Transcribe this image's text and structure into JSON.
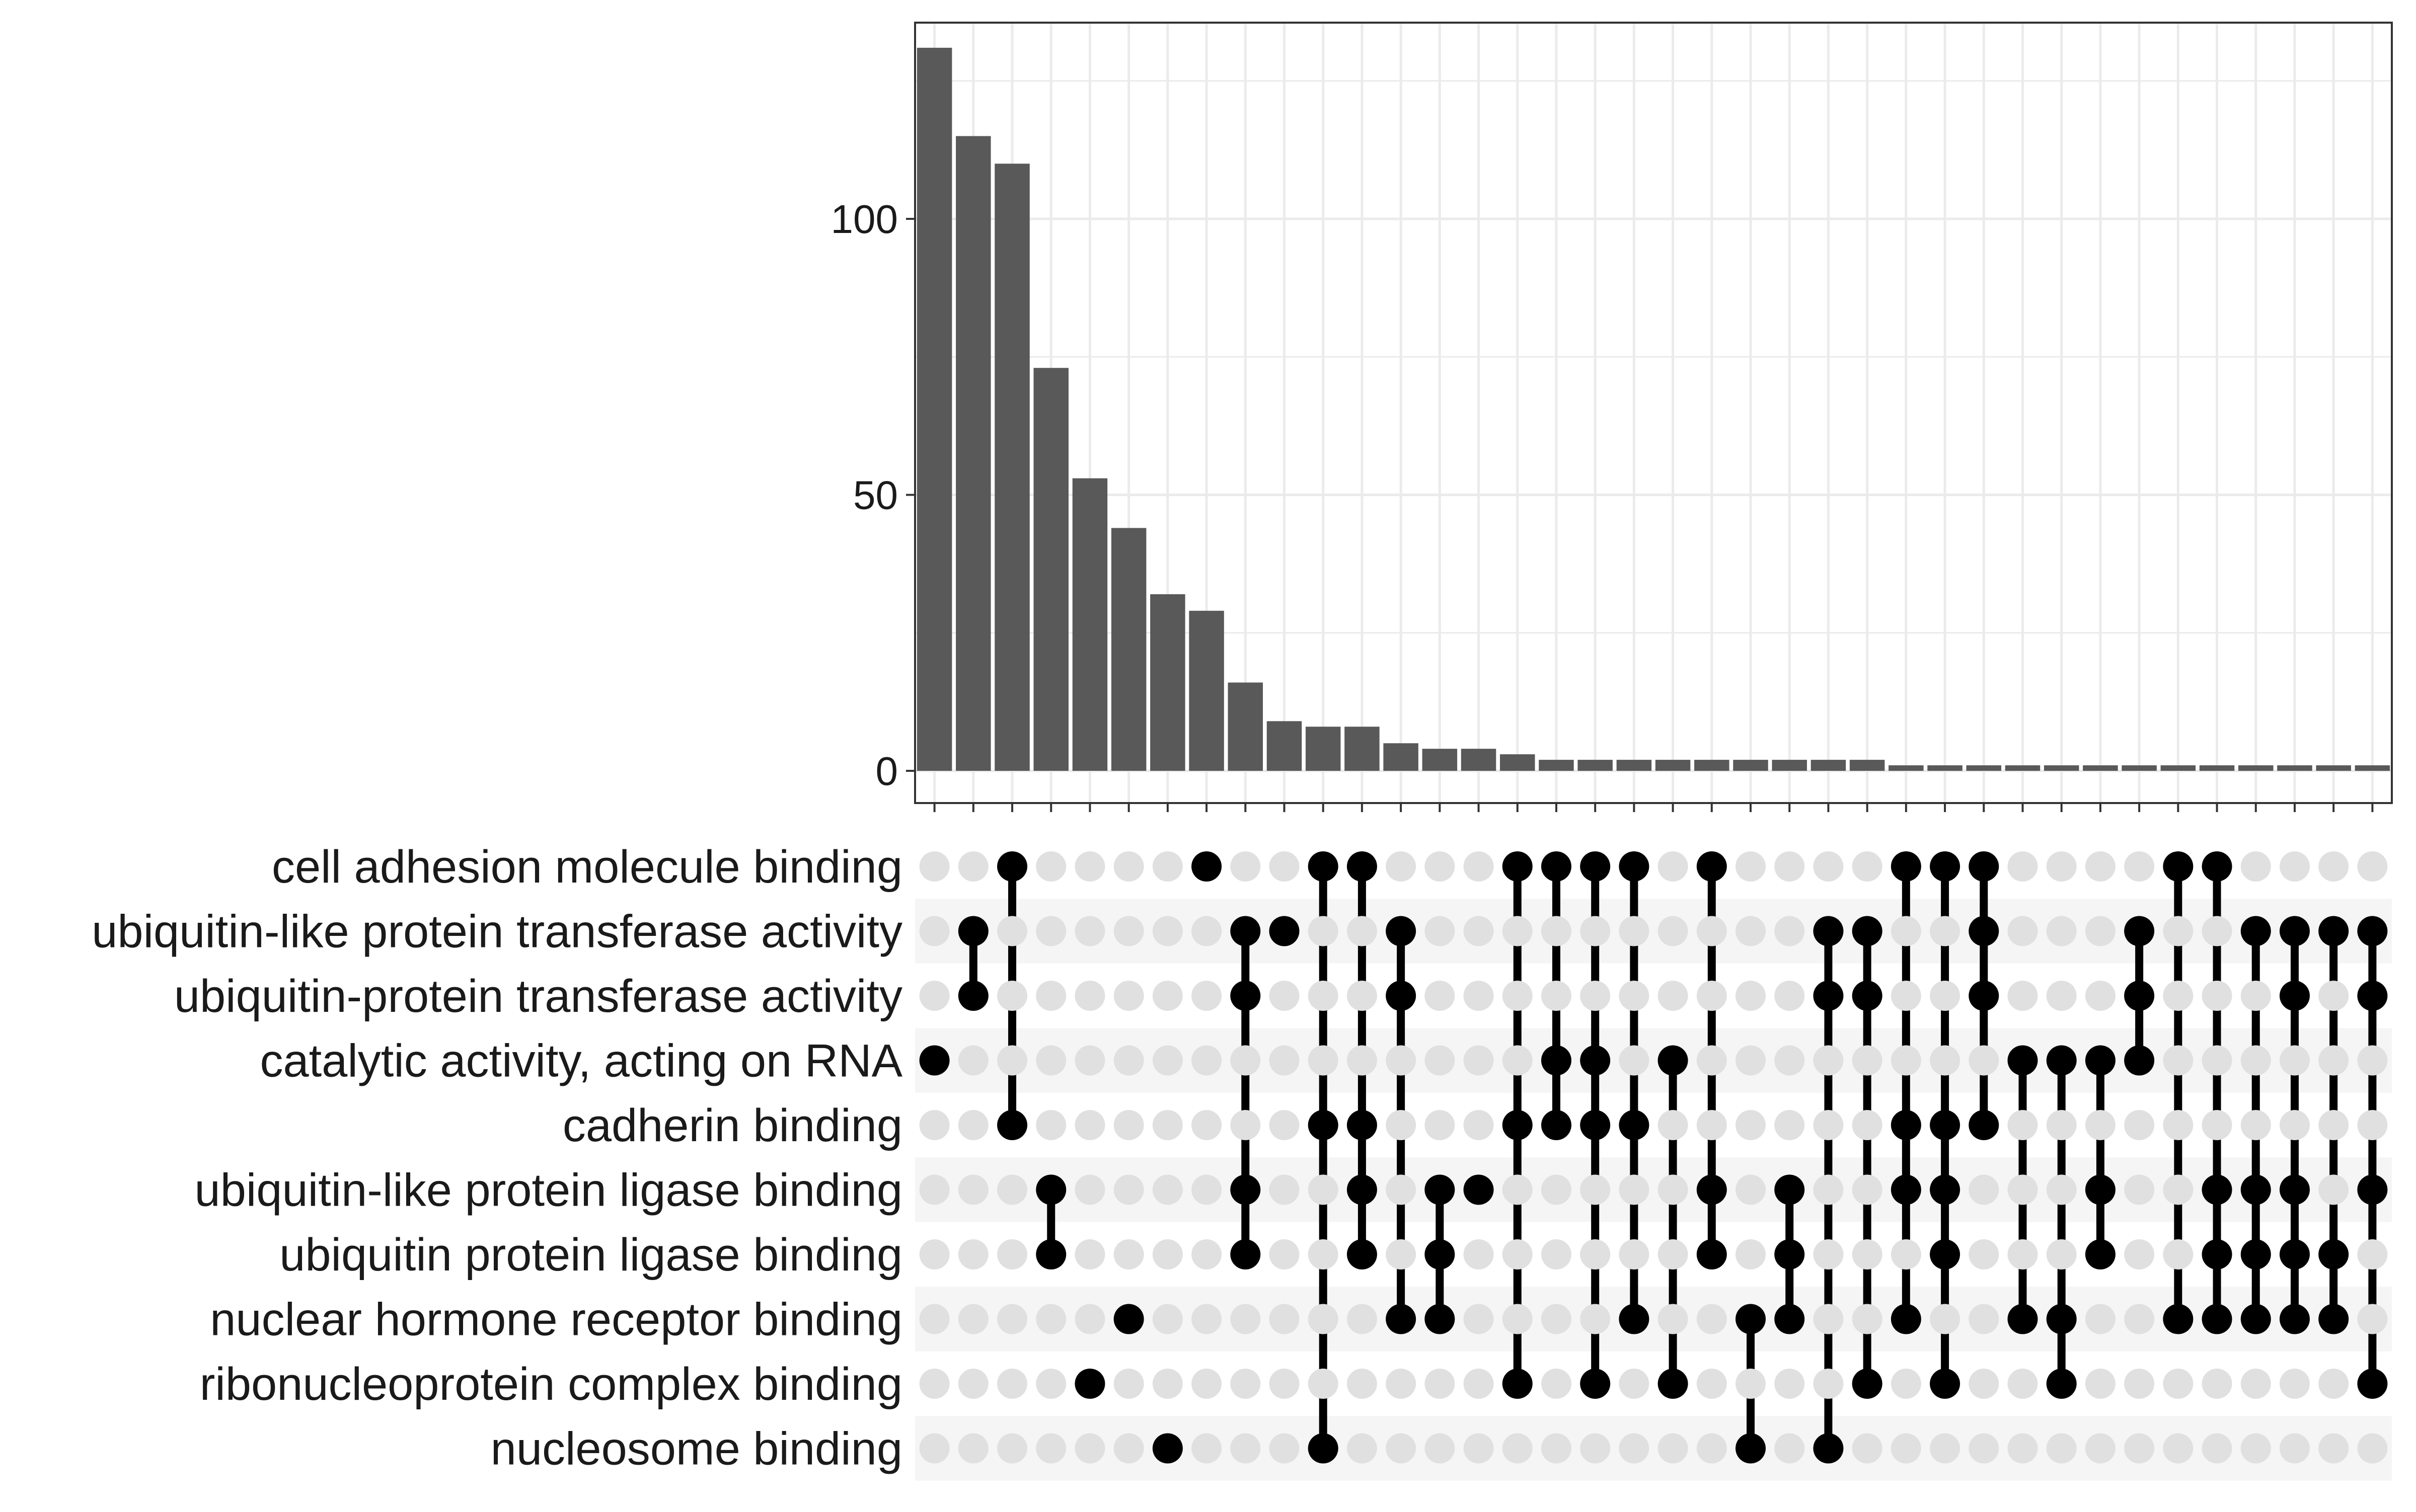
{
  "chart_data": {
    "type": "bar",
    "subtype": "upset",
    "grid": true,
    "ylim": [
      0,
      134
    ],
    "y_ticks": [
      "0",
      "50",
      "100"
    ],
    "colors": {
      "bar": "#595959",
      "dot_active": "#000000",
      "dot_inactive": "#e0e0e0",
      "grid": "#ebebeb",
      "stripe": "#f5f5f5"
    },
    "sets": [
      "cell adhesion molecule binding",
      "ubiquitin-like protein transferase activity",
      "ubiquitin-protein transferase activity",
      "catalytic activity, acting on RNA",
      "cadherin binding",
      "ubiquitin-like protein ligase binding",
      "ubiquitin protein ligase binding",
      "nuclear hormone receptor binding",
      "ribonucleoprotein complex binding",
      "nucleosome binding"
    ],
    "intersections": [
      {
        "value": 131,
        "members": [
          3
        ]
      },
      {
        "value": 115,
        "members": [
          1,
          2
        ]
      },
      {
        "value": 110,
        "members": [
          0,
          4
        ]
      },
      {
        "value": 73,
        "members": [
          5,
          6
        ]
      },
      {
        "value": 53,
        "members": [
          8
        ]
      },
      {
        "value": 44,
        "members": [
          7
        ]
      },
      {
        "value": 32,
        "members": [
          9
        ]
      },
      {
        "value": 29,
        "members": [
          0
        ]
      },
      {
        "value": 16,
        "members": [
          1,
          2,
          5,
          6
        ]
      },
      {
        "value": 9,
        "members": [
          1
        ]
      },
      {
        "value": 8,
        "members": [
          0,
          4,
          9
        ]
      },
      {
        "value": 8,
        "members": [
          0,
          4,
          5,
          6
        ]
      },
      {
        "value": 5,
        "members": [
          1,
          2,
          7
        ]
      },
      {
        "value": 4,
        "members": [
          5,
          6,
          7
        ]
      },
      {
        "value": 4,
        "members": [
          5
        ]
      },
      {
        "value": 3,
        "members": [
          0,
          4,
          8
        ]
      },
      {
        "value": 2,
        "members": [
          0,
          3,
          4
        ]
      },
      {
        "value": 2,
        "members": [
          0,
          3,
          4,
          8
        ]
      },
      {
        "value": 2,
        "members": [
          0,
          4,
          7
        ]
      },
      {
        "value": 2,
        "members": [
          3,
          8
        ]
      },
      {
        "value": 2,
        "members": [
          0,
          5,
          6
        ]
      },
      {
        "value": 2,
        "members": [
          7,
          9
        ]
      },
      {
        "value": 2,
        "members": [
          5,
          6,
          7
        ]
      },
      {
        "value": 2,
        "members": [
          1,
          2,
          9
        ]
      },
      {
        "value": 2,
        "members": [
          1,
          2,
          8
        ]
      },
      {
        "value": 1,
        "members": [
          0,
          4,
          5,
          7
        ]
      },
      {
        "value": 1,
        "members": [
          0,
          4,
          5,
          6,
          8
        ]
      },
      {
        "value": 1,
        "members": [
          0,
          1,
          2,
          4
        ]
      },
      {
        "value": 1,
        "members": [
          3,
          7
        ]
      },
      {
        "value": 1,
        "members": [
          3,
          7,
          8
        ]
      },
      {
        "value": 1,
        "members": [
          3,
          5,
          6
        ]
      },
      {
        "value": 1,
        "members": [
          1,
          2,
          3
        ]
      },
      {
        "value": 1,
        "members": [
          0,
          7
        ]
      },
      {
        "value": 1,
        "members": [
          0,
          5,
          6,
          7
        ]
      },
      {
        "value": 1,
        "members": [
          1,
          5,
          6,
          7
        ]
      },
      {
        "value": 1,
        "members": [
          1,
          2,
          5,
          6,
          7
        ]
      },
      {
        "value": 1,
        "members": [
          1,
          6,
          7
        ]
      },
      {
        "value": 1,
        "members": [
          1,
          2,
          5,
          8
        ]
      }
    ]
  }
}
